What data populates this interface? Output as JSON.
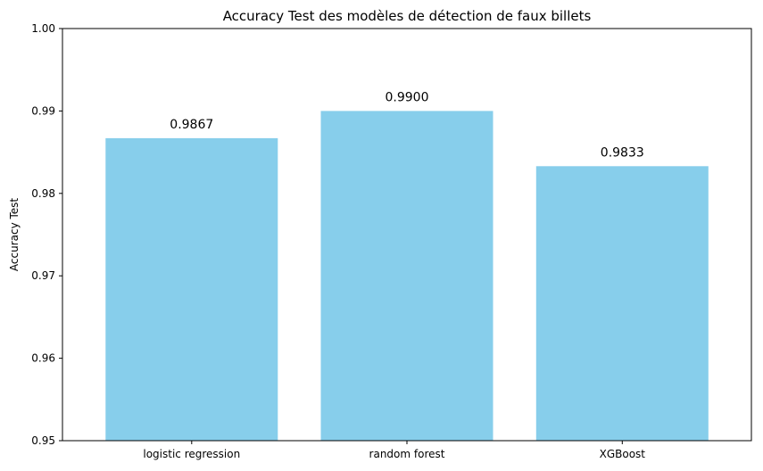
{
  "chart_data": {
    "type": "bar",
    "title": "Accuracy Test des modèles de détection de faux billets",
    "xlabel": "",
    "ylabel": "Accuracy Test",
    "categories": [
      "logistic regression",
      "random forest",
      "XGBoost"
    ],
    "values": [
      0.9867,
      0.99,
      0.9833
    ],
    "value_labels": [
      "0.9867",
      "0.9900",
      "0.9833"
    ],
    "ylim": [
      0.95,
      1.0
    ],
    "yticks": [
      0.95,
      0.96,
      0.97,
      0.98,
      0.99,
      1.0
    ],
    "ytick_labels": [
      "0.95",
      "0.96",
      "0.97",
      "0.98",
      "0.99",
      "1.00"
    ],
    "grid": false,
    "legend": "none",
    "bar_color": "#87CEEB"
  }
}
